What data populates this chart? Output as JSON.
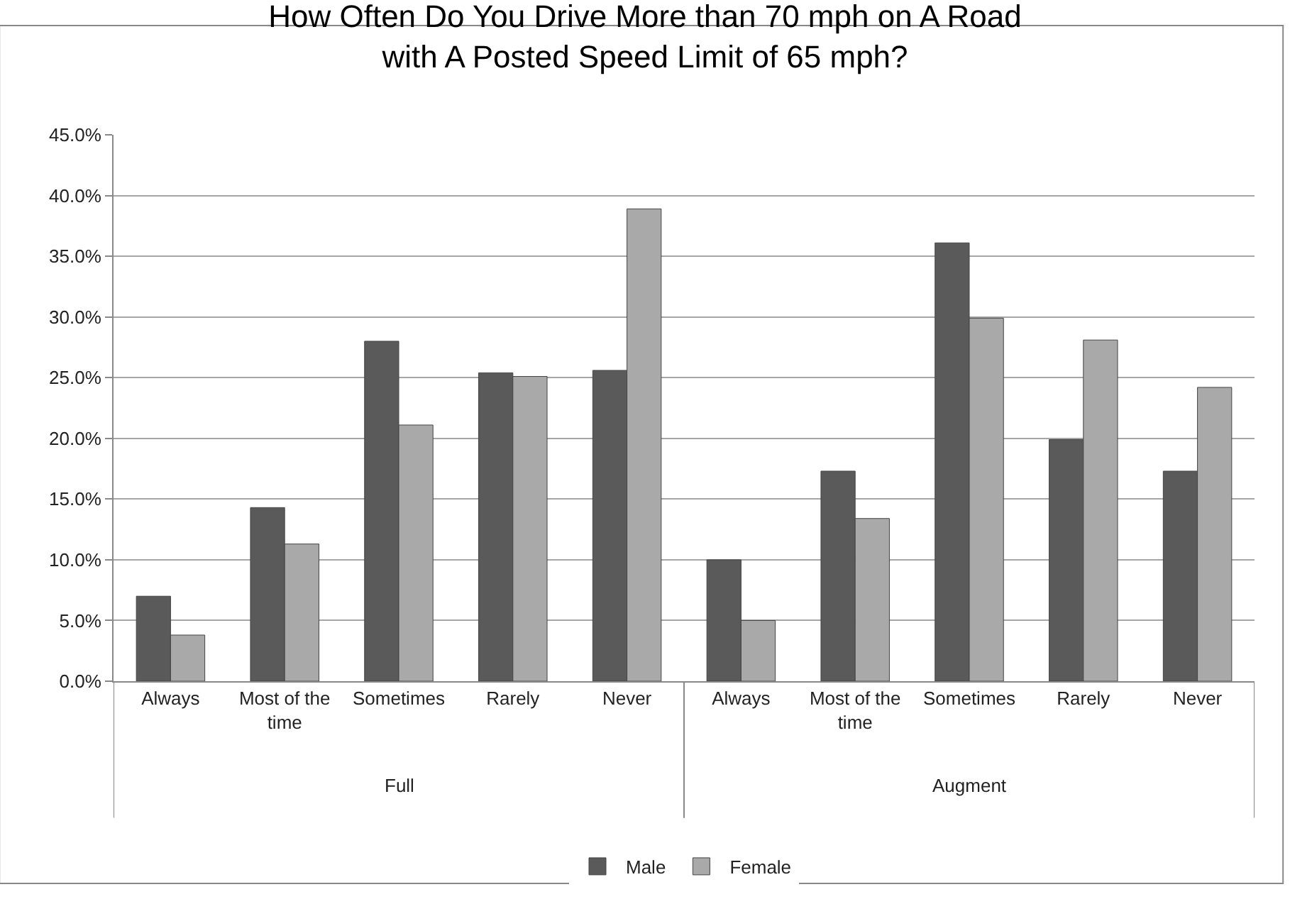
{
  "chart_data": {
    "type": "bar",
    "title": "How Often Do You Drive More than 70 mph on A Road\nwith A Posted Speed Limit of 65 mph?",
    "categories": [
      "Always",
      "Most of the time",
      "Sometimes",
      "Rarely",
      "Never",
      "Always",
      "Most of the time",
      "Sometimes",
      "Rarely",
      "Never"
    ],
    "series": [
      {
        "name": "Male",
        "color": "#5a5a5a",
        "values": [
          7.0,
          14.3,
          28.0,
          25.4,
          25.6,
          10.0,
          17.3,
          36.1,
          19.9,
          17.3
        ]
      },
      {
        "name": "Female",
        "color": "#a9a9a9",
        "values": [
          3.8,
          11.3,
          21.1,
          25.1,
          38.9,
          5.0,
          13.4,
          29.9,
          28.1,
          24.2
        ]
      }
    ],
    "annotations": [
      "Full",
      "Augment"
    ],
    "ylim": [
      0,
      45
    ],
    "yticks": [
      {
        "value": 0,
        "label": "0.0%"
      },
      {
        "value": 5,
        "label": "5.0%"
      },
      {
        "value": 10,
        "label": "10.0%"
      },
      {
        "value": 15,
        "label": "15.0%"
      },
      {
        "value": 20,
        "label": "20.0%"
      },
      {
        "value": 25,
        "label": "25.0%"
      },
      {
        "value": 30,
        "label": "30.0%"
      },
      {
        "value": 35,
        "label": "35.0%"
      },
      {
        "value": 40,
        "label": "40.0%"
      },
      {
        "value": 45,
        "label": "45.0%"
      }
    ],
    "grid": "y",
    "legend": "bottom"
  }
}
